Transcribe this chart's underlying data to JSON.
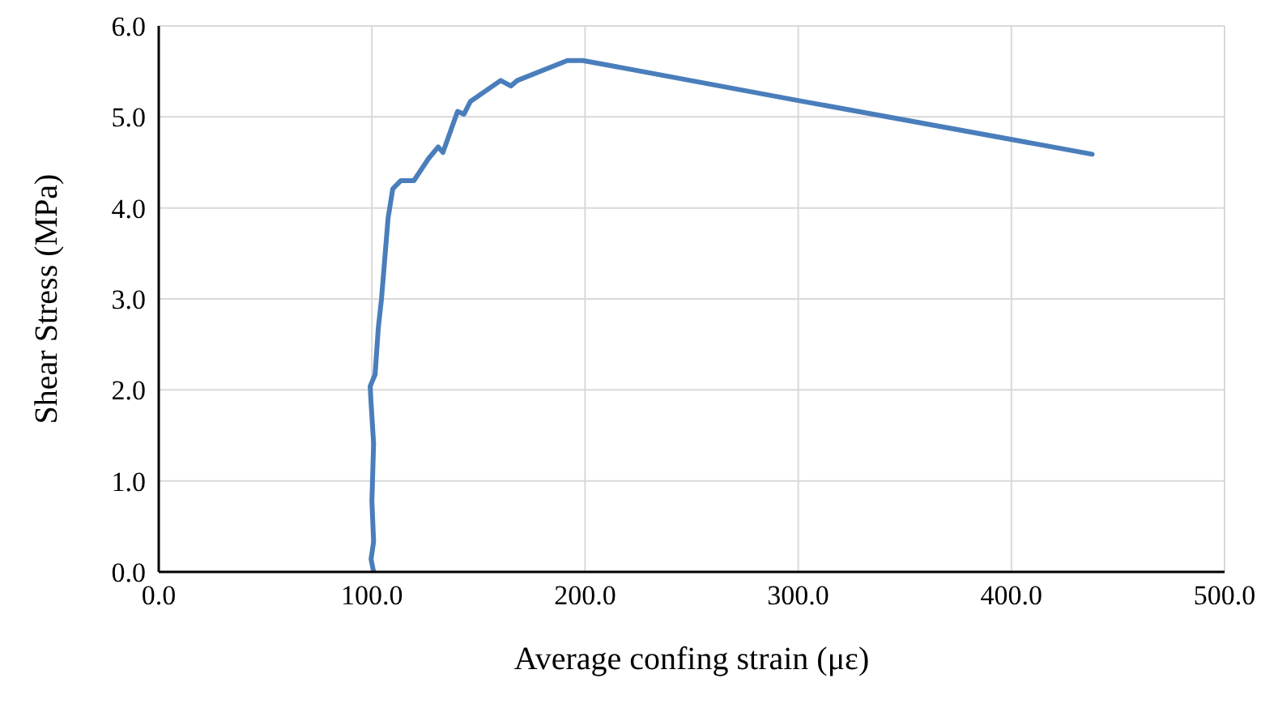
{
  "chart_data": {
    "type": "line",
    "xlabel": "Average confing strain (με)",
    "ylabel": "Shear Stress (MPa)",
    "xlim": [
      0,
      500
    ],
    "xticks": [
      {
        "value": 0,
        "label": "0.0"
      },
      {
        "value": 100,
        "label": "100.0"
      },
      {
        "value": 200,
        "label": "200.0"
      },
      {
        "value": 300,
        "label": "300.0"
      },
      {
        "value": 400,
        "label": "400.0"
      },
      {
        "value": 500,
        "label": "500.0"
      }
    ],
    "ylim": [
      0,
      6
    ],
    "yticks": [
      {
        "value": 0,
        "label": "0.0"
      },
      {
        "value": 1,
        "label": "1.0"
      },
      {
        "value": 2,
        "label": "2.0"
      },
      {
        "value": 3,
        "label": "3.0"
      },
      {
        "value": 4,
        "label": "4.0"
      },
      {
        "value": 5,
        "label": "5.0"
      },
      {
        "value": 6,
        "label": "6.0"
      }
    ],
    "grid": true,
    "marker": "none",
    "line_style": "solid",
    "series": [
      {
        "color": "#4a7ebb",
        "x": [
          100.8,
          99.6,
          100.8,
          100,
          100.8,
          99.5,
          99.2,
          101.5,
          103,
          104.5,
          107.6,
          109.8,
          113.6,
          119.7,
          126.5,
          131.1,
          133.3,
          140.2,
          143.2,
          146.2,
          160.4,
          165.2,
          168.2,
          191.7,
          199,
          300,
          437.9
        ],
        "values": [
          0,
          0.14,
          0.33,
          0.78,
          1.41,
          1.9,
          2.04,
          2.17,
          2.68,
          3.0,
          3.89,
          4.21,
          4.3,
          4.3,
          4.54,
          4.67,
          4.61,
          5.06,
          5.03,
          5.17,
          5.4,
          5.34,
          5.4,
          5.62,
          5.62,
          5.18,
          4.59
        ]
      }
    ]
  }
}
